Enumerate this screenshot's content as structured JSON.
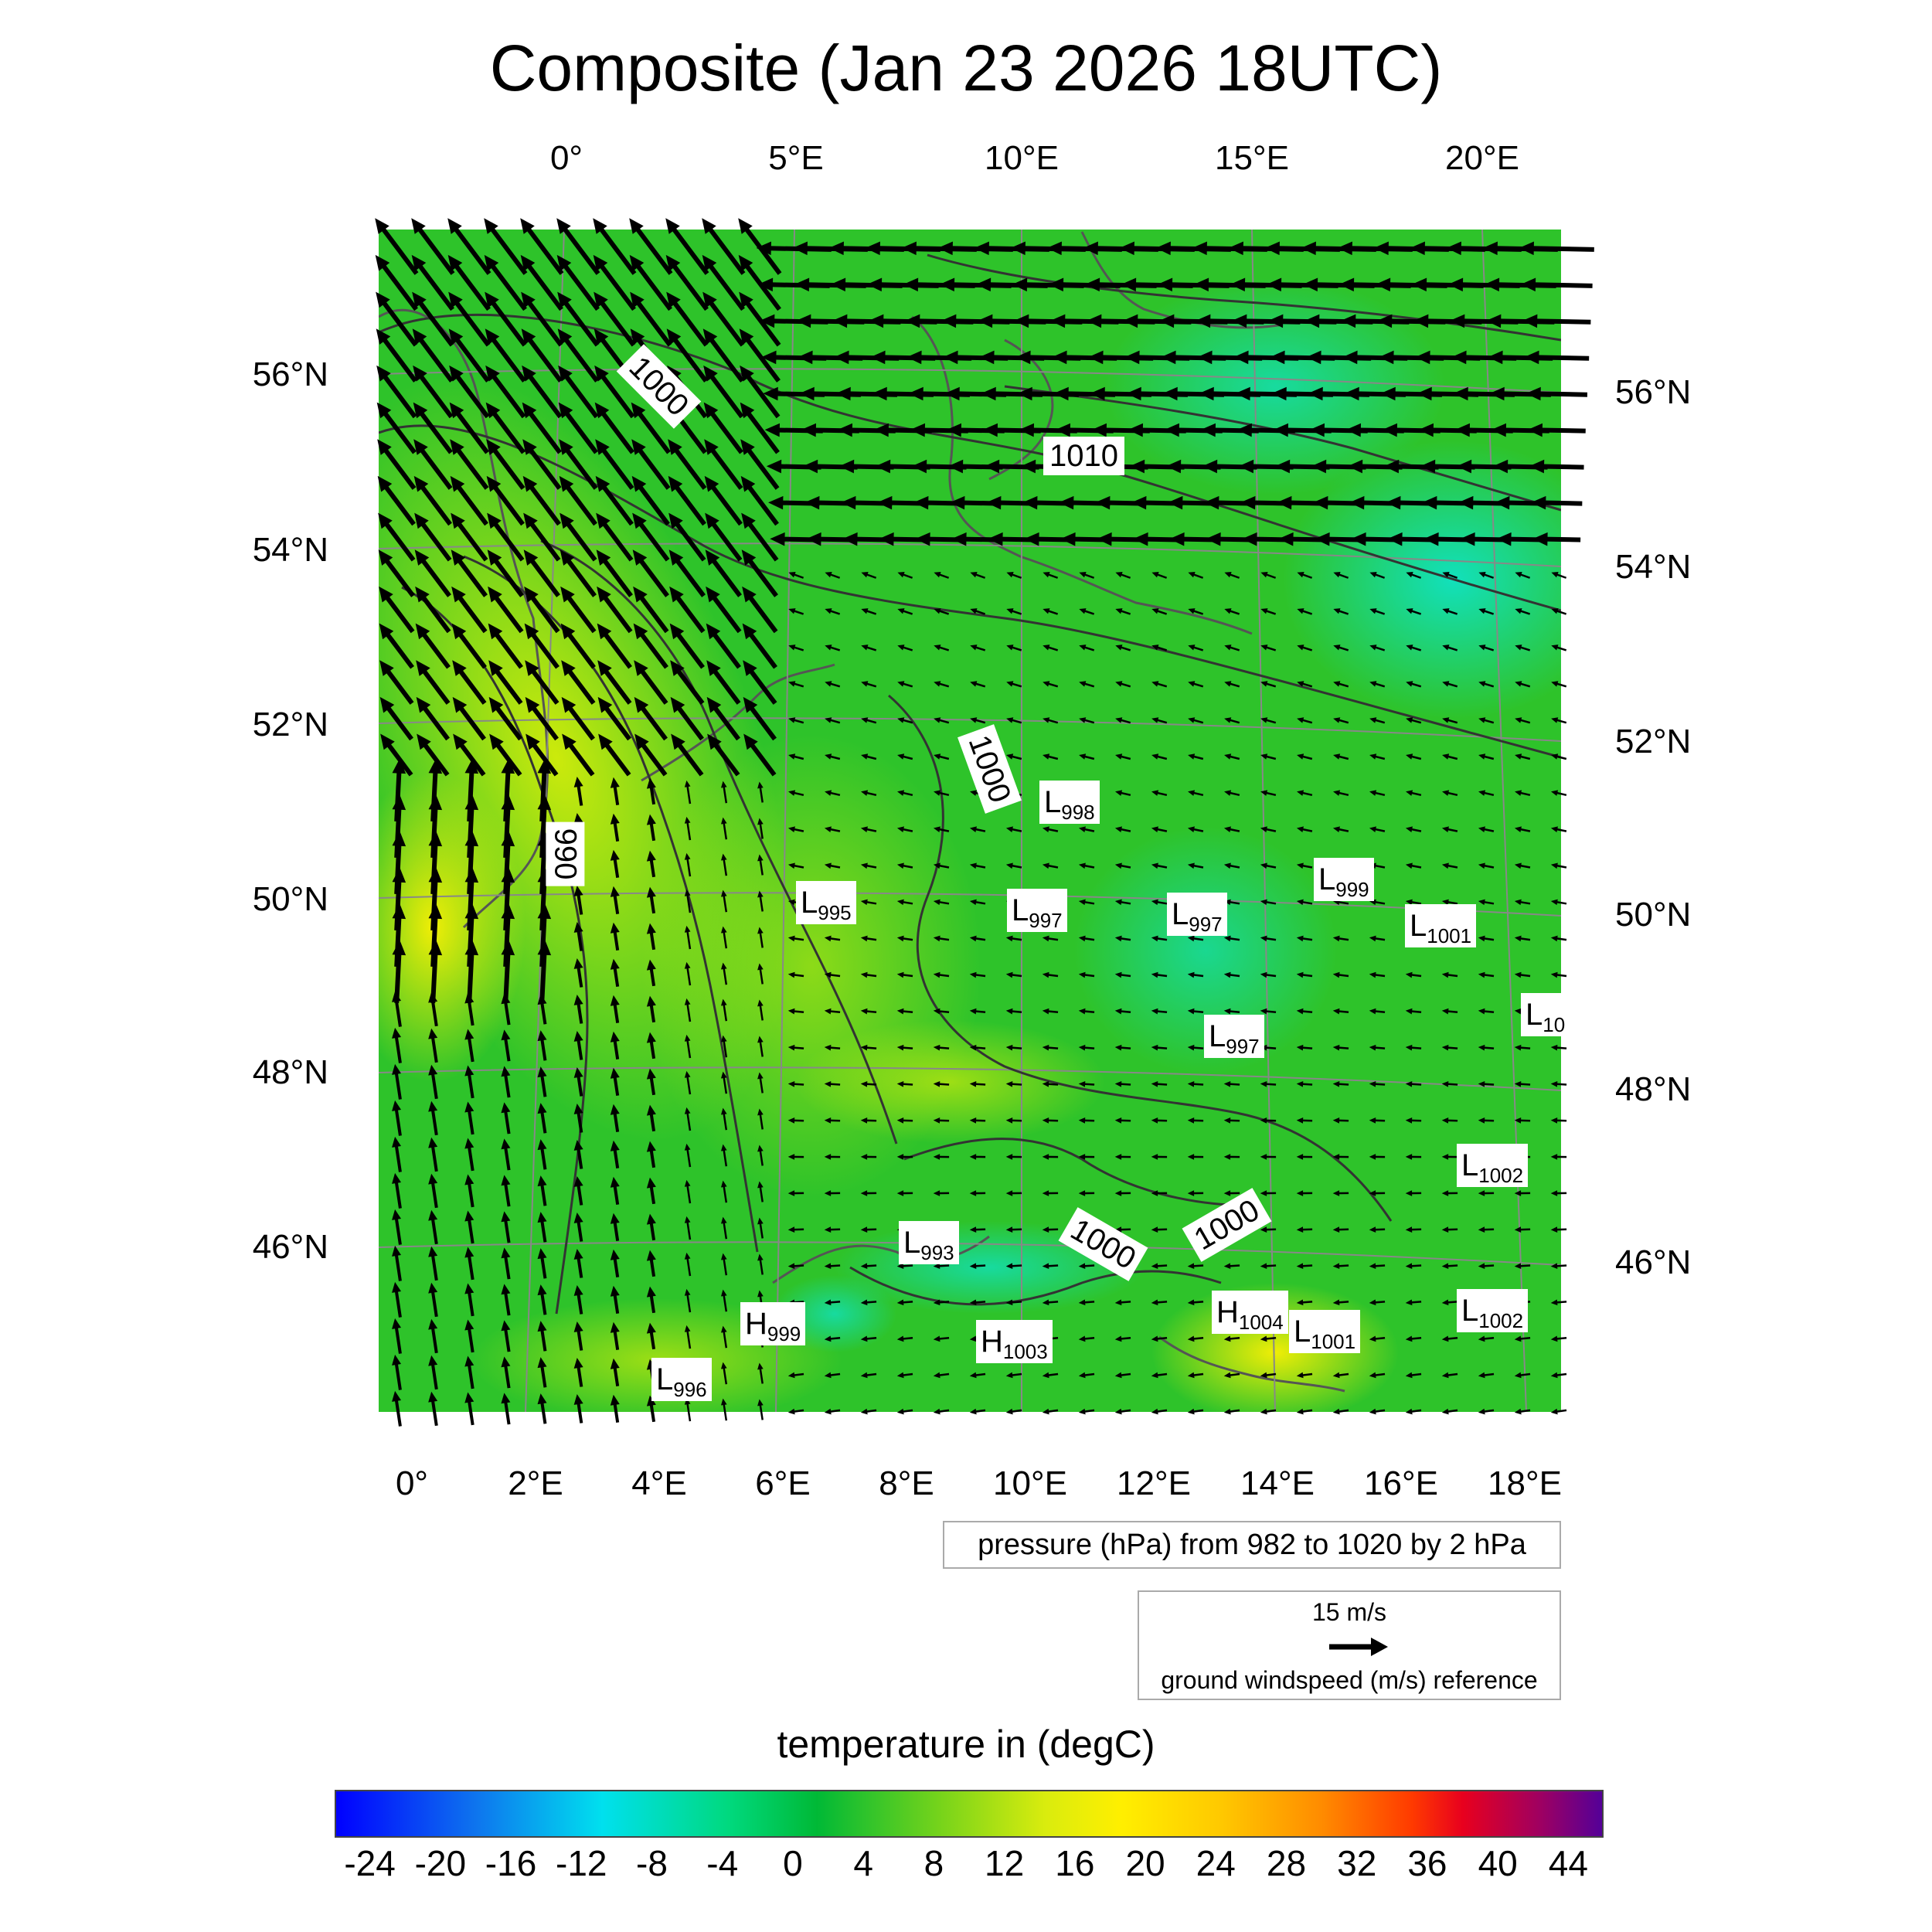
{
  "title": "Composite (Jan 23 2026 18UTC)",
  "map": {
    "top_lon_labels": [
      "0°",
      "5°E",
      "10°E",
      "15°E",
      "20°E"
    ],
    "bottom_lon_labels": [
      "0°",
      "2°E",
      "4°E",
      "6°E",
      "8°E",
      "10°E",
      "12°E",
      "14°E",
      "16°E",
      "18°E"
    ],
    "left_lat_labels": [
      "56°N",
      "54°N",
      "52°N",
      "50°N",
      "48°N",
      "46°N"
    ],
    "right_lat_labels": [
      "56°N",
      "54°N",
      "52°N",
      "50°N",
      "48°N",
      "46°N"
    ],
    "isobar_labels": [
      "1000",
      "1010",
      "1000",
      "990",
      "1000",
      "1000"
    ],
    "pressure_centers": [
      {
        "type": "L",
        "value": "998"
      },
      {
        "type": "L",
        "value": "995"
      },
      {
        "type": "L",
        "value": "997"
      },
      {
        "type": "L",
        "value": "997"
      },
      {
        "type": "L",
        "value": "999"
      },
      {
        "type": "L",
        "value": "1001"
      },
      {
        "type": "L",
        "value": "10"
      },
      {
        "type": "L",
        "value": "997"
      },
      {
        "type": "L",
        "value": "1002"
      },
      {
        "type": "L",
        "value": "993"
      },
      {
        "type": "H",
        "value": "999"
      },
      {
        "type": "H",
        "value": "1003"
      },
      {
        "type": "H",
        "value": "1004"
      },
      {
        "type": "L",
        "value": "1001"
      },
      {
        "type": "L",
        "value": "1002"
      },
      {
        "type": "L",
        "value": "996"
      }
    ]
  },
  "pressure_note": "pressure (hPa) from 982 to 1020 by 2 hPa",
  "wind_reference": {
    "speed": "15 m/s",
    "description": "ground windspeed (m/s) reference"
  },
  "colorbar": {
    "title": "temperature in (degC)",
    "ticks": [
      "-24",
      "-20",
      "-16",
      "-12",
      "-8",
      "-4",
      "0",
      "4",
      "8",
      "12",
      "16",
      "20",
      "24",
      "28",
      "32",
      "36",
      "40",
      "44"
    ],
    "range": [
      -26,
      46
    ]
  },
  "colors": {
    "cold": "#00e8c8",
    "base": "#22c12a",
    "warm": "#c8e80a",
    "land_outline": "#555555",
    "isobar": "#333333"
  }
}
